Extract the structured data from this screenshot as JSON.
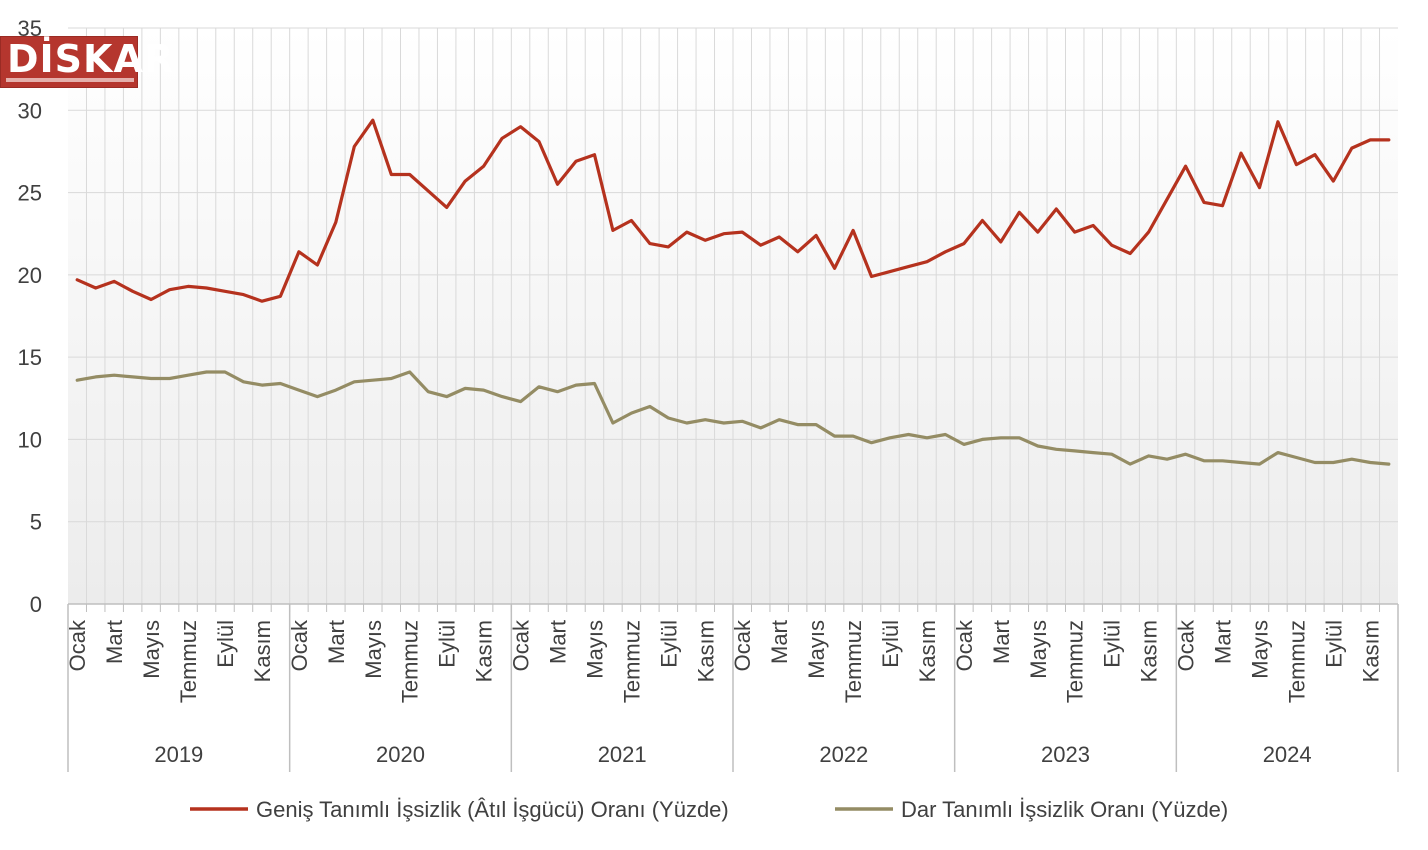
{
  "logo": {
    "text": "DİSKAR",
    "name": "diskar-logo"
  },
  "chart_data": {
    "type": "line",
    "ylim": [
      0,
      35
    ],
    "yticks": [
      0,
      5,
      10,
      15,
      20,
      25,
      30,
      35
    ],
    "grid": "on",
    "legend_placement": "bottom",
    "years": [
      "2019",
      "2020",
      "2021",
      "2022",
      "2023",
      "2024"
    ],
    "month_labels": [
      "Ocak",
      "Mart",
      "Mayıs",
      "Temmuz",
      "Eylül",
      "Kasım"
    ],
    "series": [
      {
        "name": "Geniş Tanımlı İşsizlik (Âtıl İşgücü) Oranı (Yüzde)",
        "color": "#b5321e",
        "values": [
          19.7,
          19.2,
          19.6,
          19.0,
          18.5,
          19.1,
          19.3,
          19.2,
          19.0,
          18.8,
          18.4,
          18.7,
          21.4,
          20.6,
          23.2,
          27.8,
          29.4,
          26.1,
          26.1,
          25.1,
          24.1,
          25.7,
          26.6,
          28.3,
          29.0,
          28.1,
          25.5,
          26.9,
          27.3,
          22.7,
          23.3,
          21.9,
          21.7,
          22.6,
          22.1,
          22.5,
          22.6,
          21.8,
          22.3,
          21.4,
          22.4,
          20.4,
          22.7,
          19.9,
          20.2,
          20.5,
          20.8,
          21.4,
          21.9,
          23.3,
          22.0,
          23.8,
          22.6,
          24.0,
          22.6,
          23.0,
          21.8,
          21.3,
          22.6,
          24.6,
          26.6,
          24.4,
          24.2,
          27.4,
          25.3,
          29.3,
          26.7,
          27.3,
          25.7,
          27.7,
          28.2,
          28.2
        ]
      },
      {
        "name": "Dar Tanımlı İşsizlik Oranı (Yüzde)",
        "color": "#948c64",
        "values": [
          13.6,
          13.8,
          13.9,
          13.8,
          13.7,
          13.7,
          13.9,
          14.1,
          14.1,
          13.5,
          13.3,
          13.4,
          13.0,
          12.6,
          13.0,
          13.5,
          13.6,
          13.7,
          14.1,
          12.9,
          12.6,
          13.1,
          13.0,
          12.6,
          12.3,
          13.2,
          12.9,
          13.3,
          13.4,
          11.0,
          11.6,
          12.0,
          11.3,
          11.0,
          11.2,
          11.0,
          11.1,
          10.7,
          11.2,
          10.9,
          10.9,
          10.2,
          10.2,
          9.8,
          10.1,
          10.3,
          10.1,
          10.3,
          9.7,
          10.0,
          10.1,
          10.1,
          9.6,
          9.4,
          9.3,
          9.2,
          9.1,
          8.5,
          9.0,
          8.8,
          9.1,
          8.7,
          8.7,
          8.6,
          8.5,
          9.2,
          8.9,
          8.6,
          8.6,
          8.8,
          8.6,
          8.5
        ]
      }
    ]
  }
}
